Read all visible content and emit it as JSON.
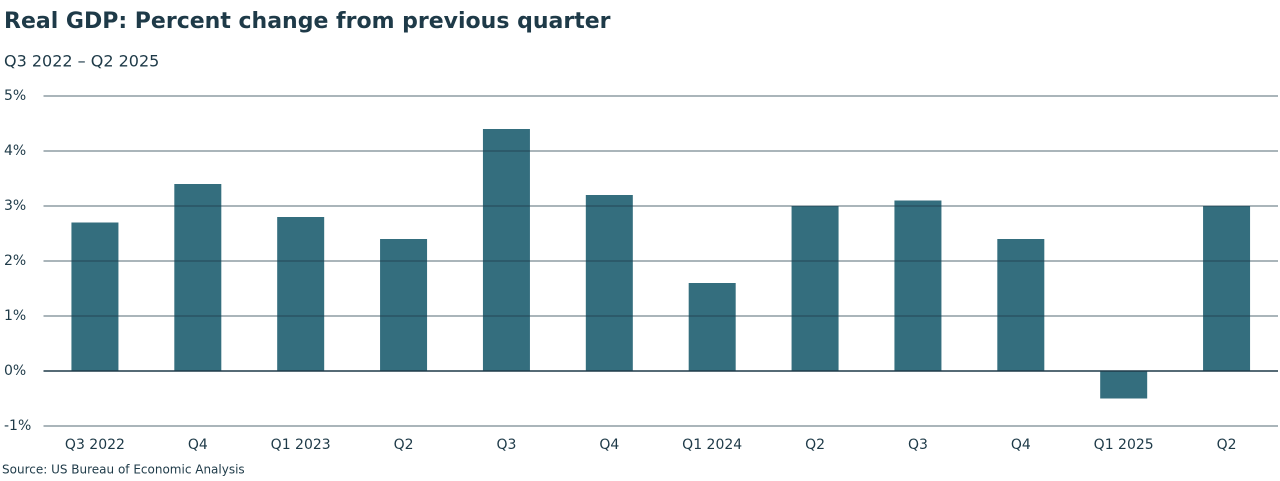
{
  "chart_data": {
    "type": "bar",
    "title": "Real GDP: Percent change from previous quarter",
    "subtitle": "Q3 2022 – Q2 2025",
    "source": "Source: US Bureau of Economic Analysis",
    "categories": [
      "Q3 2022",
      "Q4",
      "Q1 2023",
      "Q2",
      "Q3",
      "Q4",
      "Q1 2024",
      "Q2",
      "Q3",
      "Q4",
      "Q1 2025",
      "Q2"
    ],
    "values": [
      2.7,
      3.4,
      2.8,
      2.4,
      4.4,
      3.2,
      1.6,
      3.0,
      3.1,
      2.4,
      -0.5,
      3.0
    ],
    "color": "#346e7e",
    "ylim": [
      -1,
      5
    ],
    "yticks": [
      {
        "value": -1,
        "label": "-1%"
      },
      {
        "value": 0,
        "label": "0%"
      },
      {
        "value": 1,
        "label": "1%"
      },
      {
        "value": 2,
        "label": "2%"
      },
      {
        "value": 3,
        "label": "3%"
      },
      {
        "value": 4,
        "label": "4%"
      },
      {
        "value": 5,
        "label": "5%"
      }
    ],
    "grid": true
  }
}
